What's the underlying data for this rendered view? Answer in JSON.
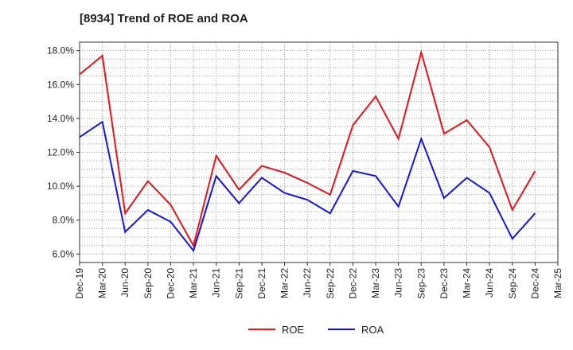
{
  "chart_data": {
    "type": "line",
    "title": "[8934]  Trend of ROE and ROA",
    "xlabel": "",
    "ylabel": "",
    "categories": [
      "Dec-19",
      "Mar-20",
      "Jun-20",
      "Sep-20",
      "Dec-20",
      "Mar-21",
      "Jun-21",
      "Sep-21",
      "Dec-21",
      "Mar-22",
      "Jun-22",
      "Sep-22",
      "Dec-22",
      "Mar-23",
      "Jun-23",
      "Sep-23",
      "Dec-23",
      "Mar-24",
      "Jun-24",
      "Sep-24",
      "Dec-24",
      "Mar-25",
      "Dec-25"
    ],
    "ylim": [
      5.5,
      18.5
    ],
    "yticks": [
      6.0,
      8.0,
      10.0,
      12.0,
      14.0,
      16.0,
      18.0
    ],
    "ytick_labels": [
      "6.0%",
      "8.0%",
      "10.0%",
      "12.0%",
      "14.0%",
      "16.0%",
      "18.0%"
    ],
    "grid": true,
    "legend_position": "bottom-center",
    "series": [
      {
        "name": "ROE",
        "color": "#e8141a",
        "values": [
          16.6,
          17.7,
          8.4,
          10.3,
          8.9,
          6.5,
          11.8,
          9.8,
          11.2,
          10.8,
          10.2,
          9.5,
          13.6,
          15.3,
          12.8,
          17.9,
          13.1,
          13.9,
          12.3,
          8.6,
          10.9,
          null,
          null
        ]
      },
      {
        "name": "ROA",
        "color": "#1414e6",
        "values": [
          12.9,
          13.8,
          7.3,
          8.6,
          7.9,
          6.2,
          10.6,
          9.0,
          10.5,
          9.6,
          9.2,
          8.4,
          10.9,
          10.6,
          8.8,
          12.8,
          9.3,
          10.5,
          9.6,
          6.9,
          8.4,
          null,
          null
        ]
      }
    ]
  }
}
